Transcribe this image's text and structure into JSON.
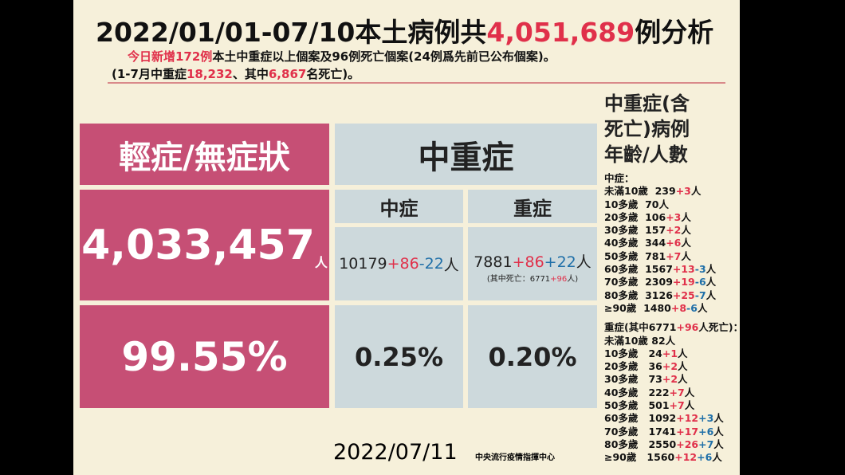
{
  "title": [
    {
      "t": "2022/01/01-07/10本土病例共",
      "c": "#111111"
    },
    {
      "t": "4,051,689",
      "c": "#e0304a"
    },
    {
      "t": "例分析",
      "c": "#111111"
    }
  ],
  "notes": [
    [
      {
        "t": "今日新增172例",
        "c": "#e0304a"
      },
      {
        "t": "本土中重症以上個案及96例死亡個案(24例爲先前已公布個案)。",
        "c": "#111111"
      }
    ],
    [
      {
        "t": "(1-7月中重症",
        "c": "#111111"
      },
      {
        "t": "18,232",
        "c": "#e0304a"
      },
      {
        "t": "、其中",
        "c": "#111111"
      },
      {
        "t": "6,867",
        "c": "#e0304a"
      },
      {
        "t": "名死亡)。",
        "c": "#111111"
      }
    ]
  ],
  "table": {
    "mild": {
      "header": "輕症/無症狀",
      "count": "4,033,457",
      "unit": "人",
      "pct": "99.55%"
    },
    "serious": {
      "header": "中重症",
      "moderate": {
        "header": "中症",
        "count": [
          {
            "t": "10179",
            "c": "#222222"
          },
          {
            "t": "+86",
            "c": "#e0304a"
          },
          {
            "t": "-22",
            "c": "#1f6fa8"
          },
          {
            "t": "人",
            "c": "#222222"
          }
        ],
        "pct": "0.25%"
      },
      "severe": {
        "header": "重症",
        "count": [
          {
            "t": "7881",
            "c": "#222222"
          },
          {
            "t": "+86",
            "c": "#e0304a"
          },
          {
            "t": "+22",
            "c": "#1f6fa8"
          },
          {
            "t": "人",
            "c": "#222222"
          }
        ],
        "sub": [
          {
            "t": "(其中死亡：6771",
            "c": "#222222"
          },
          {
            "t": "+96",
            "c": "#e0304a"
          },
          {
            "t": "人)",
            "c": "#222222"
          }
        ],
        "pct": "0.20%"
      }
    }
  },
  "side": {
    "title": [
      "中重症(含",
      "死亡)病例",
      "年齡/人數"
    ],
    "moderate_label": [
      {
        "t": "中症：",
        "c": "#111111"
      }
    ],
    "moderate": [
      [
        {
          "t": "未滿10歲  239",
          "c": "#111111"
        },
        {
          "t": "+3",
          "c": "#e0304a"
        },
        {
          "t": "人",
          "c": "#111111"
        }
      ],
      [
        {
          "t": "10多歲  70人",
          "c": "#111111"
        }
      ],
      [
        {
          "t": "20多歲  106",
          "c": "#111111"
        },
        {
          "t": "+3",
          "c": "#e0304a"
        },
        {
          "t": "人",
          "c": "#111111"
        }
      ],
      [
        {
          "t": "30多歲  157",
          "c": "#111111"
        },
        {
          "t": "+2",
          "c": "#e0304a"
        },
        {
          "t": "人",
          "c": "#111111"
        }
      ],
      [
        {
          "t": "40多歲  344",
          "c": "#111111"
        },
        {
          "t": "+6",
          "c": "#e0304a"
        },
        {
          "t": "人",
          "c": "#111111"
        }
      ],
      [
        {
          "t": "50多歲  781",
          "c": "#111111"
        },
        {
          "t": "+7",
          "c": "#e0304a"
        },
        {
          "t": "人",
          "c": "#111111"
        }
      ],
      [
        {
          "t": "60多歲  1567",
          "c": "#111111"
        },
        {
          "t": "+13",
          "c": "#e0304a"
        },
        {
          "t": "-3",
          "c": "#1f6fa8"
        },
        {
          "t": "人",
          "c": "#111111"
        }
      ],
      [
        {
          "t": "70多歲  2309",
          "c": "#111111"
        },
        {
          "t": "+19",
          "c": "#e0304a"
        },
        {
          "t": "-6",
          "c": "#1f6fa8"
        },
        {
          "t": "人",
          "c": "#111111"
        }
      ],
      [
        {
          "t": "80多歲  3126",
          "c": "#111111"
        },
        {
          "t": "+25",
          "c": "#e0304a"
        },
        {
          "t": "-7",
          "c": "#1f6fa8"
        },
        {
          "t": "人",
          "c": "#111111"
        }
      ],
      [
        {
          "t": "≥90歲  1480",
          "c": "#111111"
        },
        {
          "t": "+8",
          "c": "#e0304a"
        },
        {
          "t": "-6",
          "c": "#1f6fa8"
        },
        {
          "t": "人",
          "c": "#111111"
        }
      ]
    ],
    "severe_label": [
      {
        "t": "重症(其中6771",
        "c": "#111111"
      },
      {
        "t": "+96",
        "c": "#e0304a"
      },
      {
        "t": "人死亡)：",
        "c": "#111111"
      }
    ],
    "severe": [
      [
        {
          "t": "未滿10歲 82人",
          "c": "#111111"
        }
      ],
      [
        {
          "t": "10多歲   24",
          "c": "#111111"
        },
        {
          "t": "+1",
          "c": "#e0304a"
        },
        {
          "t": "人",
          "c": "#111111"
        }
      ],
      [
        {
          "t": "20多歲   36",
          "c": "#111111"
        },
        {
          "t": "+2",
          "c": "#e0304a"
        },
        {
          "t": "人",
          "c": "#111111"
        }
      ],
      [
        {
          "t": "30多歲   73",
          "c": "#111111"
        },
        {
          "t": "+2",
          "c": "#e0304a"
        },
        {
          "t": "人",
          "c": "#111111"
        }
      ],
      [
        {
          "t": "40多歲   222",
          "c": "#111111"
        },
        {
          "t": "+7",
          "c": "#e0304a"
        },
        {
          "t": "人",
          "c": "#111111"
        }
      ],
      [
        {
          "t": "50多歲   501",
          "c": "#111111"
        },
        {
          "t": "+7",
          "c": "#e0304a"
        },
        {
          "t": "人",
          "c": "#111111"
        }
      ],
      [
        {
          "t": "60多歲   1092",
          "c": "#111111"
        },
        {
          "t": "+12",
          "c": "#e0304a"
        },
        {
          "t": "+3",
          "c": "#1f6fa8"
        },
        {
          "t": "人",
          "c": "#111111"
        }
      ],
      [
        {
          "t": "70多歲   1741",
          "c": "#111111"
        },
        {
          "t": "+17",
          "c": "#e0304a"
        },
        {
          "t": "+6",
          "c": "#1f6fa8"
        },
        {
          "t": "人",
          "c": "#111111"
        }
      ],
      [
        {
          "t": "80多歲   2550",
          "c": "#111111"
        },
        {
          "t": "+26",
          "c": "#e0304a"
        },
        {
          "t": "+7",
          "c": "#1f6fa8"
        },
        {
          "t": "人",
          "c": "#111111"
        }
      ],
      [
        {
          "t": "≥90歲   1560",
          "c": "#111111"
        },
        {
          "t": "+12",
          "c": "#e0304a"
        },
        {
          "t": "+6",
          "c": "#1f6fa8"
        },
        {
          "t": "人",
          "c": "#111111"
        }
      ]
    ]
  },
  "footer": {
    "date": "2022/07/11",
    "source": "中央流行疫情指揮中心"
  }
}
